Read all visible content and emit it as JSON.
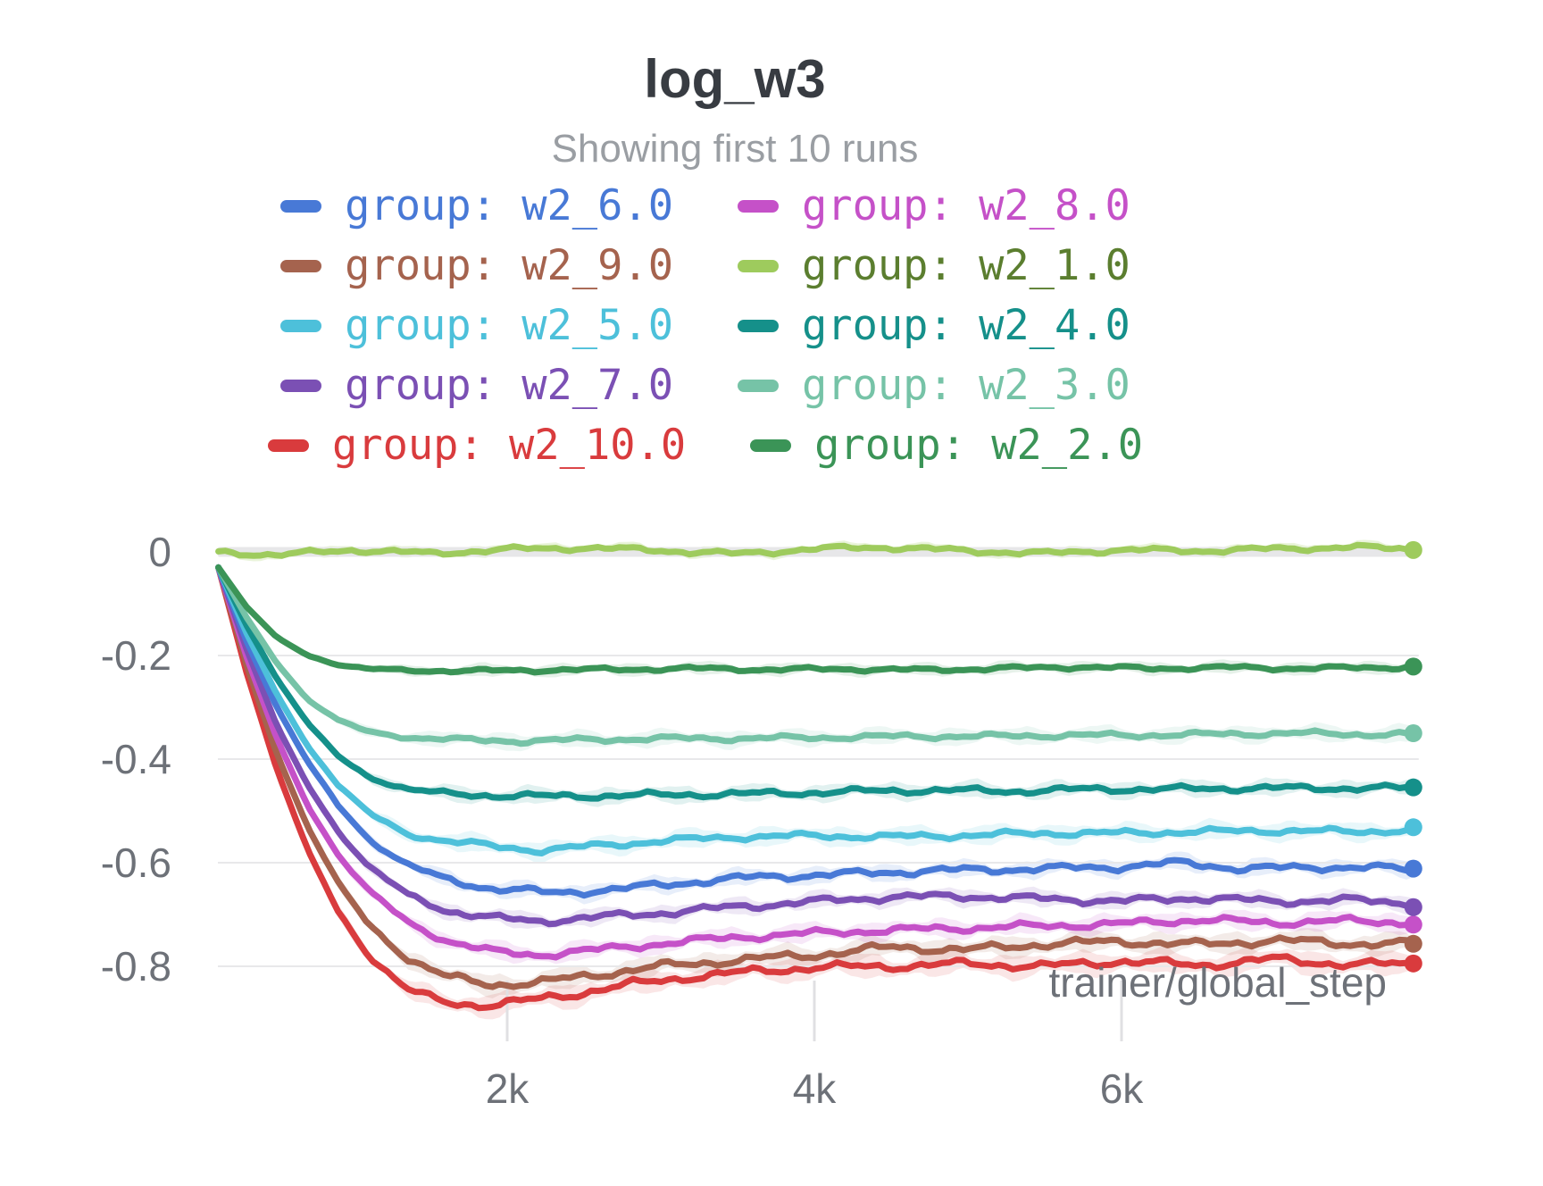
{
  "chart_data": {
    "type": "line",
    "title": "log_w3",
    "subtitle": "Showing first 10 runs",
    "xlabel": "trainer/global_step",
    "xlim": [
      120,
      7900
    ],
    "ylim": [
      -0.92,
      0.05
    ],
    "grid": "horizontal",
    "legend_position": "top-center-two-columns",
    "x_ticks": [
      {
        "label": "2k",
        "value": 2000
      },
      {
        "label": "4k",
        "value": 4000
      },
      {
        "label": "6k",
        "value": 6000
      }
    ],
    "y_ticks": [
      {
        "label": "0",
        "value": 0
      },
      {
        "label": "-0.2",
        "value": -0.2
      },
      {
        "label": "-0.4",
        "value": -0.4
      },
      {
        "label": "-0.6",
        "value": -0.6
      },
      {
        "label": "-0.8",
        "value": -0.8
      }
    ],
    "legend_rows": [
      [
        0,
        1
      ],
      [
        2,
        3
      ],
      [
        4,
        5
      ],
      [
        6,
        7
      ],
      [
        8,
        9
      ]
    ],
    "draw_order": [
      8,
      2,
      1,
      6,
      0,
      4,
      5,
      7,
      9,
      3
    ],
    "series": [
      {
        "name": "group: w2_6.0",
        "group": "w2_6.0",
        "color": "#4879d6",
        "text_color": "#4879d6",
        "end_value": -0.61,
        "noise": 0.007,
        "band": 0.016,
        "anchors": [
          [
            120,
            -0.03
          ],
          [
            300,
            -0.17
          ],
          [
            500,
            -0.3
          ],
          [
            700,
            -0.405
          ],
          [
            900,
            -0.49
          ],
          [
            1100,
            -0.555
          ],
          [
            1350,
            -0.605
          ],
          [
            1600,
            -0.632
          ],
          [
            1900,
            -0.65
          ],
          [
            2300,
            -0.658
          ],
          [
            2700,
            -0.652
          ],
          [
            3100,
            -0.64
          ],
          [
            3600,
            -0.628
          ],
          [
            4200,
            -0.622
          ],
          [
            4800,
            -0.615
          ],
          [
            5400,
            -0.612
          ],
          [
            6000,
            -0.608
          ],
          [
            6400,
            -0.6
          ],
          [
            6800,
            -0.612
          ],
          [
            7300,
            -0.608
          ],
          [
            7900,
            -0.612
          ]
        ]
      },
      {
        "name": "group: w2_8.0",
        "group": "w2_8.0",
        "color": "#c551c8",
        "text_color": "#c551c8",
        "end_value": -0.72,
        "noise": 0.007,
        "band": 0.018,
        "anchors": [
          [
            120,
            -0.03
          ],
          [
            300,
            -0.2
          ],
          [
            500,
            -0.36
          ],
          [
            700,
            -0.49
          ],
          [
            900,
            -0.585
          ],
          [
            1100,
            -0.655
          ],
          [
            1350,
            -0.715
          ],
          [
            1600,
            -0.75
          ],
          [
            1900,
            -0.772
          ],
          [
            2200,
            -0.778
          ],
          [
            2600,
            -0.768
          ],
          [
            3000,
            -0.756
          ],
          [
            3500,
            -0.744
          ],
          [
            4000,
            -0.736
          ],
          [
            4500,
            -0.73
          ],
          [
            5000,
            -0.726
          ],
          [
            5500,
            -0.722
          ],
          [
            6000,
            -0.718
          ],
          [
            6500,
            -0.71
          ],
          [
            7000,
            -0.716
          ],
          [
            7500,
            -0.712
          ],
          [
            7900,
            -0.716
          ]
        ]
      },
      {
        "name": "group: w2_9.0",
        "group": "w2_9.0",
        "color": "#a5634e",
        "text_color": "#a5634e",
        "end_value": -0.76,
        "noise": 0.008,
        "band": 0.02,
        "anchors": [
          [
            120,
            -0.03
          ],
          [
            300,
            -0.215
          ],
          [
            500,
            -0.39
          ],
          [
            700,
            -0.53
          ],
          [
            900,
            -0.64
          ],
          [
            1100,
            -0.72
          ],
          [
            1350,
            -0.785
          ],
          [
            1600,
            -0.82
          ],
          [
            1900,
            -0.835
          ],
          [
            2200,
            -0.832
          ],
          [
            2600,
            -0.815
          ],
          [
            3000,
            -0.8
          ],
          [
            3500,
            -0.788
          ],
          [
            4000,
            -0.778
          ],
          [
            4500,
            -0.763
          ],
          [
            5000,
            -0.768
          ],
          [
            5500,
            -0.757
          ],
          [
            6000,
            -0.752
          ],
          [
            6500,
            -0.758
          ],
          [
            7000,
            -0.75
          ],
          [
            7500,
            -0.756
          ],
          [
            7900,
            -0.757
          ]
        ]
      },
      {
        "name": "group: w2_1.0",
        "group": "w2_1.0",
        "color": "#9ecb5d",
        "text_color": "#5b7e2f",
        "end_value": 0.01,
        "noise": 0.005,
        "band": 0.01,
        "anchors": [
          [
            120,
            0.0
          ],
          [
            500,
            -0.006
          ],
          [
            1000,
            0.004
          ],
          [
            1500,
            -0.003
          ],
          [
            2000,
            0.005
          ],
          [
            2500,
            0.008
          ],
          [
            3000,
            0.003
          ],
          [
            3500,
            -0.004
          ],
          [
            4000,
            0.006
          ],
          [
            4500,
            0.009
          ],
          [
            5000,
            0.002
          ],
          [
            5500,
            -0.003
          ],
          [
            6000,
            0.004
          ],
          [
            6500,
            0.002
          ],
          [
            7000,
            0.006
          ],
          [
            7500,
            0.009
          ],
          [
            7900,
            0.006
          ]
        ]
      },
      {
        "name": "group: w2_5.0",
        "group": "w2_5.0",
        "color": "#4dc0da",
        "text_color": "#4dc0da",
        "end_value": -0.54,
        "noise": 0.006,
        "band": 0.018,
        "anchors": [
          [
            120,
            -0.03
          ],
          [
            300,
            -0.155
          ],
          [
            500,
            -0.275
          ],
          [
            700,
            -0.375
          ],
          [
            900,
            -0.45
          ],
          [
            1100,
            -0.505
          ],
          [
            1350,
            -0.545
          ],
          [
            1600,
            -0.558
          ],
          [
            1900,
            -0.568
          ],
          [
            2200,
            -0.576
          ],
          [
            2600,
            -0.567
          ],
          [
            3000,
            -0.558
          ],
          [
            3500,
            -0.55
          ],
          [
            4000,
            -0.548
          ],
          [
            4500,
            -0.55
          ],
          [
            5000,
            -0.547
          ],
          [
            5500,
            -0.543
          ],
          [
            6000,
            -0.543
          ],
          [
            6500,
            -0.54
          ],
          [
            7000,
            -0.538
          ],
          [
            7500,
            -0.54
          ],
          [
            7900,
            -0.537
          ]
        ]
      },
      {
        "name": "group: w2_4.0",
        "group": "w2_4.0",
        "color": "#15908a",
        "text_color": "#15908a",
        "end_value": -0.46,
        "noise": 0.006,
        "band": 0.016,
        "anchors": [
          [
            120,
            -0.03
          ],
          [
            300,
            -0.14
          ],
          [
            500,
            -0.245
          ],
          [
            700,
            -0.33
          ],
          [
            900,
            -0.395
          ],
          [
            1100,
            -0.435
          ],
          [
            1350,
            -0.458
          ],
          [
            1600,
            -0.467
          ],
          [
            1900,
            -0.47
          ],
          [
            2300,
            -0.472
          ],
          [
            2800,
            -0.47
          ],
          [
            3300,
            -0.468
          ],
          [
            3800,
            -0.466
          ],
          [
            4300,
            -0.462
          ],
          [
            4800,
            -0.46
          ],
          [
            5300,
            -0.462
          ],
          [
            5800,
            -0.458
          ],
          [
            6300,
            -0.458
          ],
          [
            6800,
            -0.456
          ],
          [
            7300,
            -0.456
          ],
          [
            7900,
            -0.456
          ]
        ]
      },
      {
        "name": "group: w2_7.0",
        "group": "w2_7.0",
        "color": "#7b50b4",
        "text_color": "#7b50b4",
        "end_value": -0.68,
        "noise": 0.007,
        "band": 0.016,
        "anchors": [
          [
            120,
            -0.03
          ],
          [
            300,
            -0.185
          ],
          [
            500,
            -0.335
          ],
          [
            700,
            -0.45
          ],
          [
            900,
            -0.54
          ],
          [
            1100,
            -0.608
          ],
          [
            1350,
            -0.662
          ],
          [
            1600,
            -0.692
          ],
          [
            1900,
            -0.707
          ],
          [
            2200,
            -0.713
          ],
          [
            2600,
            -0.705
          ],
          [
            3000,
            -0.697
          ],
          [
            3500,
            -0.685
          ],
          [
            4000,
            -0.675
          ],
          [
            4500,
            -0.666
          ],
          [
            5000,
            -0.665
          ],
          [
            5500,
            -0.67
          ],
          [
            6000,
            -0.674
          ],
          [
            6500,
            -0.668
          ],
          [
            7000,
            -0.675
          ],
          [
            7500,
            -0.672
          ],
          [
            7900,
            -0.678
          ]
        ]
      },
      {
        "name": "group: w2_3.0",
        "group": "w2_3.0",
        "color": "#76c3a7",
        "text_color": "#76c3a7",
        "end_value": -0.35,
        "noise": 0.005,
        "band": 0.016,
        "anchors": [
          [
            120,
            -0.03
          ],
          [
            300,
            -0.125
          ],
          [
            500,
            -0.215
          ],
          [
            700,
            -0.285
          ],
          [
            900,
            -0.325
          ],
          [
            1100,
            -0.348
          ],
          [
            1350,
            -0.358
          ],
          [
            1700,
            -0.363
          ],
          [
            2100,
            -0.365
          ],
          [
            2600,
            -0.362
          ],
          [
            3100,
            -0.36
          ],
          [
            3600,
            -0.36
          ],
          [
            4100,
            -0.358
          ],
          [
            4600,
            -0.356
          ],
          [
            5100,
            -0.356
          ],
          [
            5600,
            -0.354
          ],
          [
            6100,
            -0.354
          ],
          [
            6600,
            -0.352
          ],
          [
            7100,
            -0.35
          ],
          [
            7500,
            -0.352
          ],
          [
            7900,
            -0.352
          ]
        ]
      },
      {
        "name": "group: w2_10.0",
        "group": "w2_10.0",
        "color": "#d93b3d",
        "text_color": "#d93b3d",
        "end_value": -0.8,
        "noise": 0.008,
        "band": 0.022,
        "anchors": [
          [
            120,
            -0.03
          ],
          [
            300,
            -0.23
          ],
          [
            500,
            -0.42
          ],
          [
            700,
            -0.575
          ],
          [
            900,
            -0.695
          ],
          [
            1100,
            -0.78
          ],
          [
            1350,
            -0.845
          ],
          [
            1600,
            -0.87
          ],
          [
            1850,
            -0.875
          ],
          [
            2100,
            -0.868
          ],
          [
            2400,
            -0.855
          ],
          [
            2800,
            -0.835
          ],
          [
            3200,
            -0.82
          ],
          [
            3600,
            -0.81
          ],
          [
            4000,
            -0.802
          ],
          [
            4500,
            -0.8
          ],
          [
            5000,
            -0.795
          ],
          [
            5500,
            -0.8
          ],
          [
            6000,
            -0.79
          ],
          [
            6500,
            -0.798
          ],
          [
            7000,
            -0.786
          ],
          [
            7500,
            -0.797
          ],
          [
            7900,
            -0.795
          ]
        ]
      },
      {
        "name": "group: w2_2.0",
        "group": "w2_2.0",
        "color": "#3b9457",
        "text_color": "#3b9457",
        "end_value": -0.22,
        "noise": 0.004,
        "band": 0.012,
        "anchors": [
          [
            120,
            -0.03
          ],
          [
            300,
            -0.105
          ],
          [
            500,
            -0.165
          ],
          [
            700,
            -0.2
          ],
          [
            900,
            -0.218
          ],
          [
            1100,
            -0.226
          ],
          [
            1400,
            -0.229
          ],
          [
            1800,
            -0.23
          ],
          [
            2200,
            -0.228
          ],
          [
            2700,
            -0.227
          ],
          [
            3200,
            -0.225
          ],
          [
            3700,
            -0.227
          ],
          [
            4200,
            -0.226
          ],
          [
            4700,
            -0.228
          ],
          [
            5200,
            -0.225
          ],
          [
            5700,
            -0.222
          ],
          [
            6200,
            -0.225
          ],
          [
            6700,
            -0.223
          ],
          [
            7200,
            -0.225
          ],
          [
            7900,
            -0.222
          ]
        ]
      }
    ],
    "colors": {
      "zero_band": "#e7e7e9",
      "gridline": "#e8e8ea",
      "tick_mark": "#e0e0e3",
      "axis_text": "#6d7178",
      "title_text": "#383c42",
      "subtitle_text": "#9a9ea3"
    }
  }
}
